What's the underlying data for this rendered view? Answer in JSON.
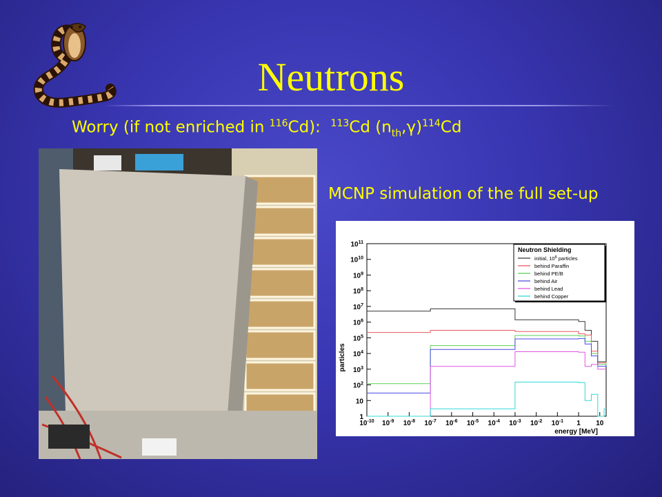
{
  "slide": {
    "title": "Neutrons",
    "worry_text": "Worry (if not enriched in ",
    "worry_iso1_mass": "116",
    "worry_iso1_el": "Cd):  ",
    "worry_iso2_mass": "113",
    "worry_iso2_rest": "Cd (n",
    "worry_sub": "th",
    "worry_gamma": ",γ)",
    "worry_iso3_mass": "114",
    "worry_iso3_el": "Cd",
    "mcnp_caption": "MCNP simulation of the full set-up"
  },
  "images": {
    "logo_icon": "cobra-logo-icon",
    "photo_icon": "shielding-photo-icon"
  },
  "chart_data": {
    "type": "line",
    "step": true,
    "title": "",
    "xlabel": "energy [MeV]",
    "ylabel": "particles",
    "x_scale": "log",
    "y_scale": "log",
    "xlim": [
      1e-10,
      20
    ],
    "ylim": [
      1,
      100000000000.0
    ],
    "x_ticks": [
      {
        "v": 1e-10,
        "m": "10",
        "e": "-10"
      },
      {
        "v": 1e-09,
        "m": "10",
        "e": "-9"
      },
      {
        "v": 1e-08,
        "m": "10",
        "e": "-8"
      },
      {
        "v": 1e-07,
        "m": "10",
        "e": "-7"
      },
      {
        "v": 1e-06,
        "m": "10",
        "e": "-6"
      },
      {
        "v": 1e-05,
        "m": "10",
        "e": "-5"
      },
      {
        "v": 0.0001,
        "m": "10",
        "e": "-4"
      },
      {
        "v": 0.001,
        "m": "10",
        "e": "-3"
      },
      {
        "v": 0.01,
        "m": "10",
        "e": "-2"
      },
      {
        "v": 0.1,
        "m": "10",
        "e": "-1"
      },
      {
        "v": 1,
        "m": "1",
        "e": ""
      },
      {
        "v": 10,
        "m": "10",
        "e": ""
      }
    ],
    "y_ticks": [
      {
        "v": 1,
        "m": "1",
        "e": ""
      },
      {
        "v": 10,
        "m": "10",
        "e": ""
      },
      {
        "v": 100,
        "m": "10",
        "e": "2"
      },
      {
        "v": 1000,
        "m": "10",
        "e": "3"
      },
      {
        "v": 10000.0,
        "m": "10",
        "e": "4"
      },
      {
        "v": 100000.0,
        "m": "10",
        "e": "5"
      },
      {
        "v": 1000000.0,
        "m": "10",
        "e": "6"
      },
      {
        "v": 10000000.0,
        "m": "10",
        "e": "7"
      },
      {
        "v": 100000000.0,
        "m": "10",
        "e": "8"
      },
      {
        "v": 1000000000.0,
        "m": "10",
        "e": "9"
      },
      {
        "v": 10000000000.0,
        "m": "10",
        "e": "10"
      },
      {
        "v": 100000000000.0,
        "m": "10",
        "e": "11"
      }
    ],
    "legend": {
      "title": "Neutron Shielding",
      "position": "top-right",
      "entries": [
        {
          "pre": "initial, 10",
          "sup": "8",
          "post": " particles",
          "color": "#333333"
        },
        {
          "pre": "behind Paraffin",
          "sup": "",
          "post": "",
          "color": "#e8555a"
        },
        {
          "pre": "behind PE/B",
          "sup": "",
          "post": "",
          "color": "#55d055"
        },
        {
          "pre": "behind Air",
          "sup": "",
          "post": "",
          "color": "#4a4ae0"
        },
        {
          "pre": "behind Lead",
          "sup": "",
          "post": "",
          "color": "#e055e0"
        },
        {
          "pre": "behind Copper",
          "sup": "",
          "post": "",
          "color": "#30d8d8"
        }
      ]
    },
    "series": [
      {
        "color": "#333333",
        "points": [
          [
            1e-10,
            5000000.0
          ],
          [
            1e-07,
            7000000.0
          ],
          [
            0.001,
            1400000.0
          ],
          [
            1,
            1100000.0
          ],
          [
            2,
            300000.0
          ],
          [
            4,
            60000.0
          ],
          [
            8,
            3000.0
          ],
          [
            20,
            3000.0
          ]
        ]
      },
      {
        "color": "#e8555a",
        "points": [
          [
            1e-10,
            220000.0
          ],
          [
            1e-07,
            300000.0
          ],
          [
            0.001,
            250000.0
          ],
          [
            1,
            180000.0
          ],
          [
            2,
            150000.0
          ],
          [
            4,
            14000.0
          ],
          [
            8,
            2500.0
          ],
          [
            20,
            3000.0
          ]
        ]
      },
      {
        "color": "#55d055",
        "points": [
          [
            1e-10,
            120
          ],
          [
            1e-07,
            32000.0
          ],
          [
            0.001,
            140000.0
          ],
          [
            1,
            130000.0
          ],
          [
            2,
            60000.0
          ],
          [
            4,
            10000.0
          ],
          [
            8,
            2000.0
          ],
          [
            20,
            2500.0
          ]
        ]
      },
      {
        "color": "#4a4ae0",
        "points": [
          [
            1e-10,
            30
          ],
          [
            1e-07,
            18000.0
          ],
          [
            0.001,
            85000.0
          ],
          [
            1,
            90000.0
          ],
          [
            2,
            40000.0
          ],
          [
            4,
            7000.0
          ],
          [
            8,
            1500.0
          ],
          [
            20,
            2000.0
          ]
        ]
      },
      {
        "color": "#e055e0",
        "points": [
          [
            1e-10,
            1
          ],
          [
            1e-07,
            1500.0
          ],
          [
            0.001,
            13000.0
          ],
          [
            1,
            12000.0
          ],
          [
            2,
            1500.0
          ],
          [
            4,
            2000.0
          ],
          [
            8,
            1000.0
          ],
          [
            20,
            1000.0
          ]
        ]
      },
      {
        "color": "#30d8d8",
        "points": [
          [
            1e-10,
            1
          ],
          [
            1e-07,
            3
          ],
          [
            0.001,
            150
          ],
          [
            1,
            140
          ],
          [
            2,
            10
          ],
          [
            4,
            25
          ],
          [
            8,
            1
          ],
          [
            16,
            3
          ],
          [
            20,
            3
          ]
        ]
      }
    ]
  }
}
